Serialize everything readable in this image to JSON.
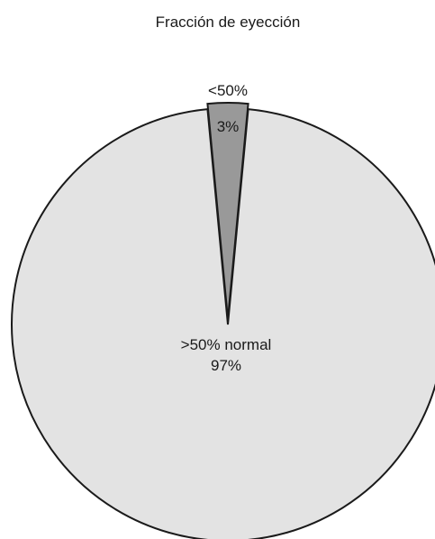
{
  "chart_data": {
    "type": "pie",
    "title": "Fracción de eyección",
    "exploded": "<50%",
    "slices": [
      {
        "label": "<50%",
        "value_label": "3%",
        "value": 3,
        "color": "#999999"
      },
      {
        "label": ">50% normal",
        "value_label": "97%",
        "value": 97,
        "color": "#e3e3e3"
      }
    ],
    "stroke_color": "#1a1a1a"
  }
}
